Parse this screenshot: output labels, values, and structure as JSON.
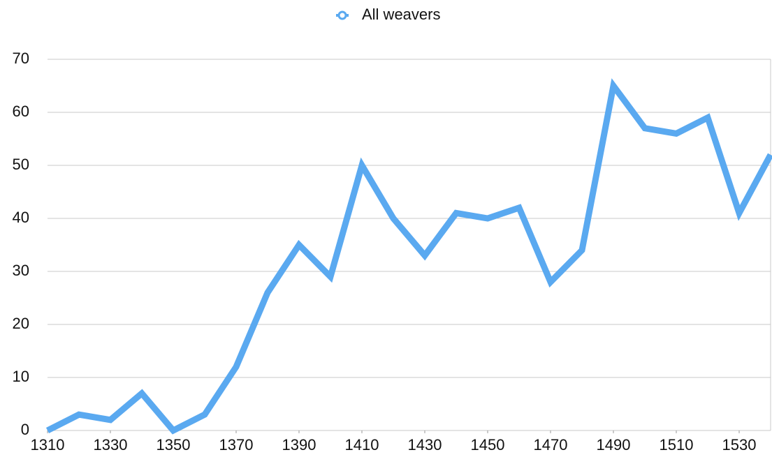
{
  "chart_data": {
    "type": "line",
    "x": [
      1310,
      1320,
      1330,
      1340,
      1350,
      1360,
      1370,
      1380,
      1390,
      1400,
      1410,
      1420,
      1430,
      1440,
      1450,
      1460,
      1470,
      1480,
      1490,
      1500,
      1510,
      1520,
      1530,
      1540
    ],
    "series": [
      {
        "name": "All weavers",
        "color": "#5aa9f0",
        "values": [
          0,
          3,
          2,
          7,
          0,
          3,
          12,
          26,
          35,
          29,
          50,
          40,
          33,
          41,
          40,
          42,
          28,
          34,
          65,
          57,
          56,
          59,
          41,
          52
        ]
      }
    ],
    "xlim": [
      1310,
      1540
    ],
    "xticks": [
      1310,
      1330,
      1350,
      1370,
      1390,
      1410,
      1430,
      1450,
      1470,
      1490,
      1510,
      1530
    ],
    "ylim": [
      0,
      70
    ],
    "yticks": [
      0,
      10,
      20,
      30,
      40,
      50,
      60,
      70
    ],
    "grid": true,
    "legend": "top"
  }
}
